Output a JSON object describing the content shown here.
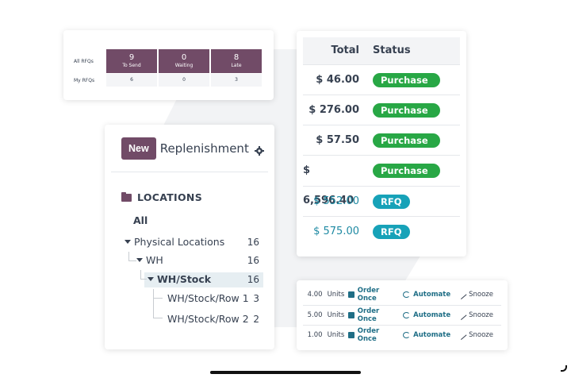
{
  "rfq": {
    "rows": [
      {
        "label": "All RFQs",
        "cells": [
          {
            "value": "9",
            "label": "To Send"
          },
          {
            "value": "0",
            "label": "Waiting"
          },
          {
            "value": "8",
            "label": "Late"
          }
        ]
      },
      {
        "label": "My RFQs",
        "cells": [
          {
            "value": "6"
          },
          {
            "value": "0"
          },
          {
            "value": "3"
          }
        ]
      }
    ]
  },
  "replenishment": {
    "new_label": "New",
    "title": "Replenishment",
    "icon": "gear-icon",
    "locations_label": "LOCATIONS",
    "all_label": "All",
    "tree": [
      {
        "label": "Physical Locations",
        "count": "16"
      },
      {
        "label": "WH",
        "count": "16"
      },
      {
        "label": "WH/Stock",
        "count": "16"
      },
      {
        "label": "WH/Stock/Row 1",
        "count": "3"
      },
      {
        "label": "WH/Stock/Row 2",
        "count": "2"
      }
    ]
  },
  "orders": {
    "headers": {
      "total": "Total",
      "status": "Status"
    },
    "rows": [
      {
        "total": "$ 46.00",
        "status": "Purchase ..."
      },
      {
        "total": "$ 276.00",
        "status": "Purchase ..."
      },
      {
        "total": "$ 57.50",
        "status": "Purchase ..."
      },
      {
        "total": "$ 6,596.40",
        "status": "Purchase ..."
      },
      {
        "total": "$ 552.00",
        "status": "RFQ"
      },
      {
        "total": "$ 575.00",
        "status": "RFQ"
      }
    ],
    "colors": {
      "purchase": "#28a745",
      "rfq": "#17a2b8"
    }
  },
  "units": {
    "rows": [
      {
        "qty": "4.00",
        "unit": "Units"
      },
      {
        "qty": "5.00",
        "unit": "Units"
      },
      {
        "qty": "1.00",
        "unit": "Units"
      }
    ],
    "actions": {
      "order_once": "Order Once",
      "automate": "Automate",
      "snooze": "Snooze"
    }
  },
  "colors": {
    "accent": "#714b67"
  }
}
